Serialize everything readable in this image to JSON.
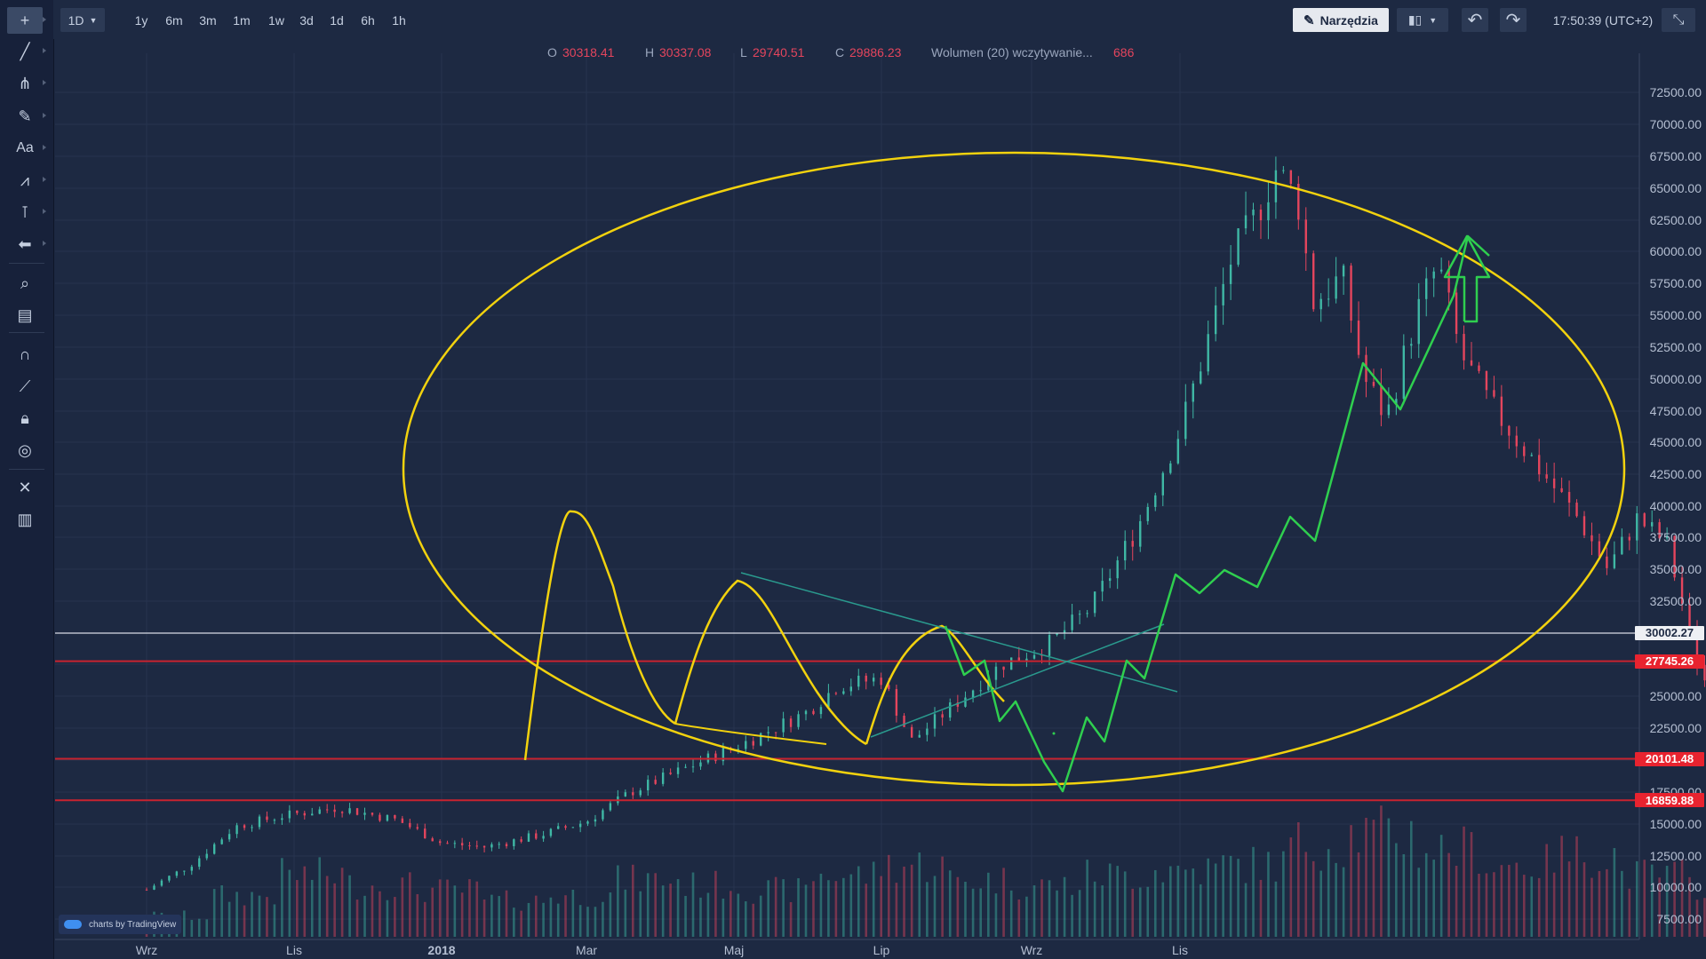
{
  "toolbar": {
    "timeframe": "1D",
    "ranges": [
      "1y",
      "6m",
      "3m",
      "1m",
      "1w",
      "3d",
      "1d",
      "6h",
      "1h"
    ],
    "tools_label": "Narzędzia",
    "clock": "17:50:39 (UTC+2)"
  },
  "left_tools": [
    "crosshair-icon",
    "trend-line-icon",
    "pitchfork-icon",
    "brush-icon",
    "text-icon",
    "pattern-icon",
    "measure-icon",
    "arrow-icon",
    "zoom-icon",
    "ruler-icon",
    "magnet-icon",
    "pencil-lock-icon",
    "lock-icon",
    "eye-icon",
    "remove-tools-icon",
    "trash-icon"
  ],
  "text_tool_label": "Aa",
  "legend": {
    "o_label": "O",
    "o_value": "30318.41",
    "h_label": "H",
    "h_value": "30337.08",
    "l_label": "L",
    "l_value": "29740.51",
    "c_label": "C",
    "c_value": "29886.23",
    "volume_label": "Wolumen (20) wczytywanie...",
    "volume_value": "686"
  },
  "watermark_text": "charts by TradingView",
  "price_axis": {
    "ticks": [
      "72500.00",
      "70000.00",
      "67500.00",
      "65000.00",
      "62500.00",
      "60000.00",
      "57500.00",
      "55000.00",
      "52500.00",
      "50000.00",
      "47500.00",
      "45000.00",
      "42500.00",
      "40000.00",
      "37500.00",
      "35000.00",
      "32500.00",
      "25000.00",
      "22500.00",
      "17500.00",
      "15000.00",
      "12500.00",
      "10000.00",
      "7500.00"
    ]
  },
  "time_axis": {
    "labels": [
      "Wrz",
      "Lis",
      "2018",
      "Mar",
      "Maj",
      "Lip",
      "Wrz",
      "Lis"
    ]
  },
  "price_tags": [
    {
      "label": "30002.27",
      "price": 30002.27,
      "bg": "#eef0f4",
      "fg": "#1d2942"
    },
    {
      "label": "27745.26",
      "price": 27745.26,
      "bg": "#e8232f",
      "fg": "#ffffff"
    },
    {
      "label": "20101.48",
      "price": 20101.48,
      "bg": "#e8232f",
      "fg": "#ffffff"
    },
    {
      "label": "16859.88",
      "price": 16859.88,
      "bg": "#e8232f",
      "fg": "#ffffff"
    }
  ],
  "colors": {
    "background": "#1d2942",
    "grid": "#27344f",
    "up_candle": "#3fb8a5",
    "down_candle": "#e4455d",
    "annotation": "#f2d20e",
    "projection": "#2fcf4f",
    "channel": "#2a9a8e"
  },
  "chart_data": {
    "type": "candlestick",
    "x_labels": [
      "Wrz",
      "Lis",
      "2018",
      "Mar",
      "Maj",
      "Lip",
      "Wrz",
      "Lis"
    ],
    "ylim": [
      7500,
      75000
    ],
    "close_path": [
      [
        0,
        9800
      ],
      [
        0.3,
        11800
      ],
      [
        0.6,
        14800
      ],
      [
        0.9,
        15600
      ],
      [
        1.3,
        16300
      ],
      [
        1.7,
        15300
      ],
      [
        2.0,
        13500
      ],
      [
        2.3,
        13200
      ],
      [
        2.7,
        14200
      ],
      [
        3.0,
        15200
      ],
      [
        3.3,
        17500
      ],
      [
        3.7,
        19500
      ],
      [
        4.1,
        21500
      ],
      [
        4.5,
        23800
      ],
      [
        4.7,
        25800
      ],
      [
        5.0,
        26400
      ],
      [
        5.2,
        21500
      ],
      [
        5.5,
        24500
      ],
      [
        5.8,
        27500
      ],
      [
        6.1,
        29000
      ],
      [
        6.4,
        32000
      ],
      [
        6.7,
        38000
      ],
      [
        7.0,
        46000
      ],
      [
        7.2,
        53500
      ],
      [
        7.35,
        59500
      ],
      [
        7.5,
        62500
      ],
      [
        7.65,
        66500
      ],
      [
        7.8,
        64000
      ],
      [
        7.9,
        56000
      ],
      [
        8.1,
        58000
      ],
      [
        8.25,
        50000
      ],
      [
        8.4,
        47000
      ],
      [
        8.6,
        55000
      ],
      [
        8.75,
        59000
      ],
      [
        8.9,
        52000
      ],
      [
        9.1,
        48000
      ],
      [
        9.3,
        45000
      ],
      [
        9.5,
        42000
      ],
      [
        9.7,
        39000
      ],
      [
        9.9,
        35000
      ],
      [
        10.1,
        39000
      ],
      [
        10.3,
        37000
      ],
      [
        10.5,
        28000
      ],
      [
        10.7,
        22000
      ],
      [
        10.9,
        26000
      ],
      [
        11.1,
        31000
      ],
      [
        11.3,
        35000
      ],
      [
        11.5,
        38000
      ],
      [
        11.7,
        37000
      ],
      [
        11.9,
        36500
      ],
      [
        12.1,
        38500
      ],
      [
        12.3,
        33000
      ],
      [
        12.6,
        30500
      ],
      [
        12.9,
        28000
      ],
      [
        13.2,
        26000
      ],
      [
        13.5,
        24000
      ],
      [
        13.7,
        23000
      ],
      [
        13.9,
        22800
      ],
      [
        14.1,
        25500
      ],
      [
        14.4,
        28500
      ],
      [
        14.7,
        31000
      ],
      [
        15.0,
        33000
      ],
      [
        15.3,
        34000
      ],
      [
        15.6,
        32500
      ],
      [
        15.9,
        30500
      ],
      [
        16.2,
        29500
      ],
      [
        16.5,
        27500
      ],
      [
        16.8,
        27000
      ],
      [
        17.1,
        26500
      ],
      [
        17.4,
        25000
      ],
      [
        17.7,
        23500
      ],
      [
        18.0,
        22500
      ],
      [
        18.2,
        24000
      ],
      [
        18.5,
        23000
      ],
      [
        18.8,
        24500
      ],
      [
        19.1,
        22800
      ],
      [
        19.4,
        25000
      ],
      [
        19.7,
        27500
      ],
      [
        20.0,
        29800
      ],
      [
        20.2,
        30300
      ],
      [
        20.4,
        29900
      ]
    ],
    "volume_profile": [
      0.2,
      0.4,
      0.6,
      0.5,
      0.45,
      0.35,
      0.4,
      0.55,
      0.5,
      0.45,
      0.6,
      0.7,
      0.55,
      0.5,
      0.6,
      0.65,
      0.7,
      0.9,
      1.0,
      0.85,
      0.7,
      0.8,
      0.6,
      0.5,
      0.7,
      0.9,
      0.75,
      0.55,
      0.45,
      0.4,
      0.5,
      0.45,
      0.4,
      0.35,
      0.4,
      0.45,
      0.35,
      0.3,
      0.35,
      0.4,
      0.3,
      0.35,
      0.3,
      0.45,
      0.4
    ]
  }
}
